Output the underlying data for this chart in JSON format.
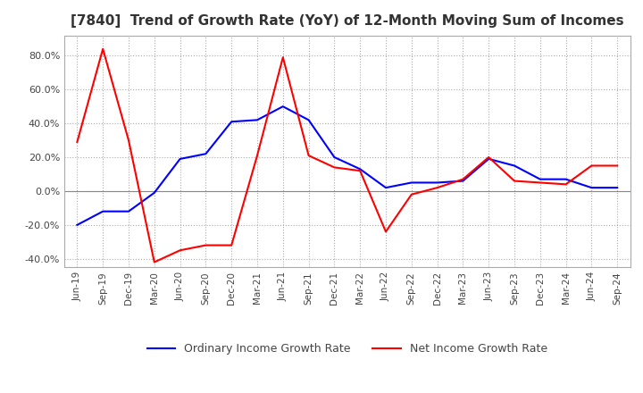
{
  "title": "[7840]  Trend of Growth Rate (YoY) of 12-Month Moving Sum of Incomes",
  "title_fontsize": 11,
  "ylim": [
    -0.45,
    0.92
  ],
  "yticks": [
    -0.4,
    -0.2,
    0.0,
    0.2,
    0.4,
    0.6,
    0.8
  ],
  "ytick_labels": [
    "-40.0%",
    "-20.0%",
    "0.0%",
    "20.0%",
    "40.0%",
    "60.0%",
    "80.0%"
  ],
  "legend_labels": [
    "Ordinary Income Growth Rate",
    "Net Income Growth Rate"
  ],
  "x_labels": [
    "Jun-19",
    "Sep-19",
    "Dec-19",
    "Mar-20",
    "Jun-20",
    "Sep-20",
    "Dec-20",
    "Mar-21",
    "Jun-21",
    "Sep-21",
    "Dec-21",
    "Mar-22",
    "Jun-22",
    "Sep-22",
    "Dec-22",
    "Mar-23",
    "Jun-23",
    "Sep-23",
    "Dec-23",
    "Mar-24",
    "Jun-24",
    "Sep-24"
  ],
  "ordinary_income_growth": [
    -0.2,
    -0.12,
    -0.12,
    -0.01,
    0.19,
    0.22,
    0.41,
    0.42,
    0.5,
    0.42,
    0.2,
    0.13,
    0.02,
    0.05,
    0.05,
    0.06,
    0.19,
    0.15,
    0.07,
    0.07,
    0.02,
    0.02
  ],
  "net_income_growth": [
    0.29,
    0.84,
    0.3,
    -0.42,
    -0.35,
    -0.32,
    -0.32,
    0.21,
    0.79,
    0.21,
    0.14,
    0.12,
    -0.24,
    -0.02,
    0.02,
    0.07,
    0.2,
    0.06,
    0.05,
    0.04,
    0.15,
    0.15
  ],
  "bg_color": "#ffffff",
  "plot_bg_color": "#ffffff",
  "grid_color": "#aaaaaa",
  "line_color_ordinary": "#0000ff",
  "line_color_net": "#ff0000",
  "line_width": 1.5
}
